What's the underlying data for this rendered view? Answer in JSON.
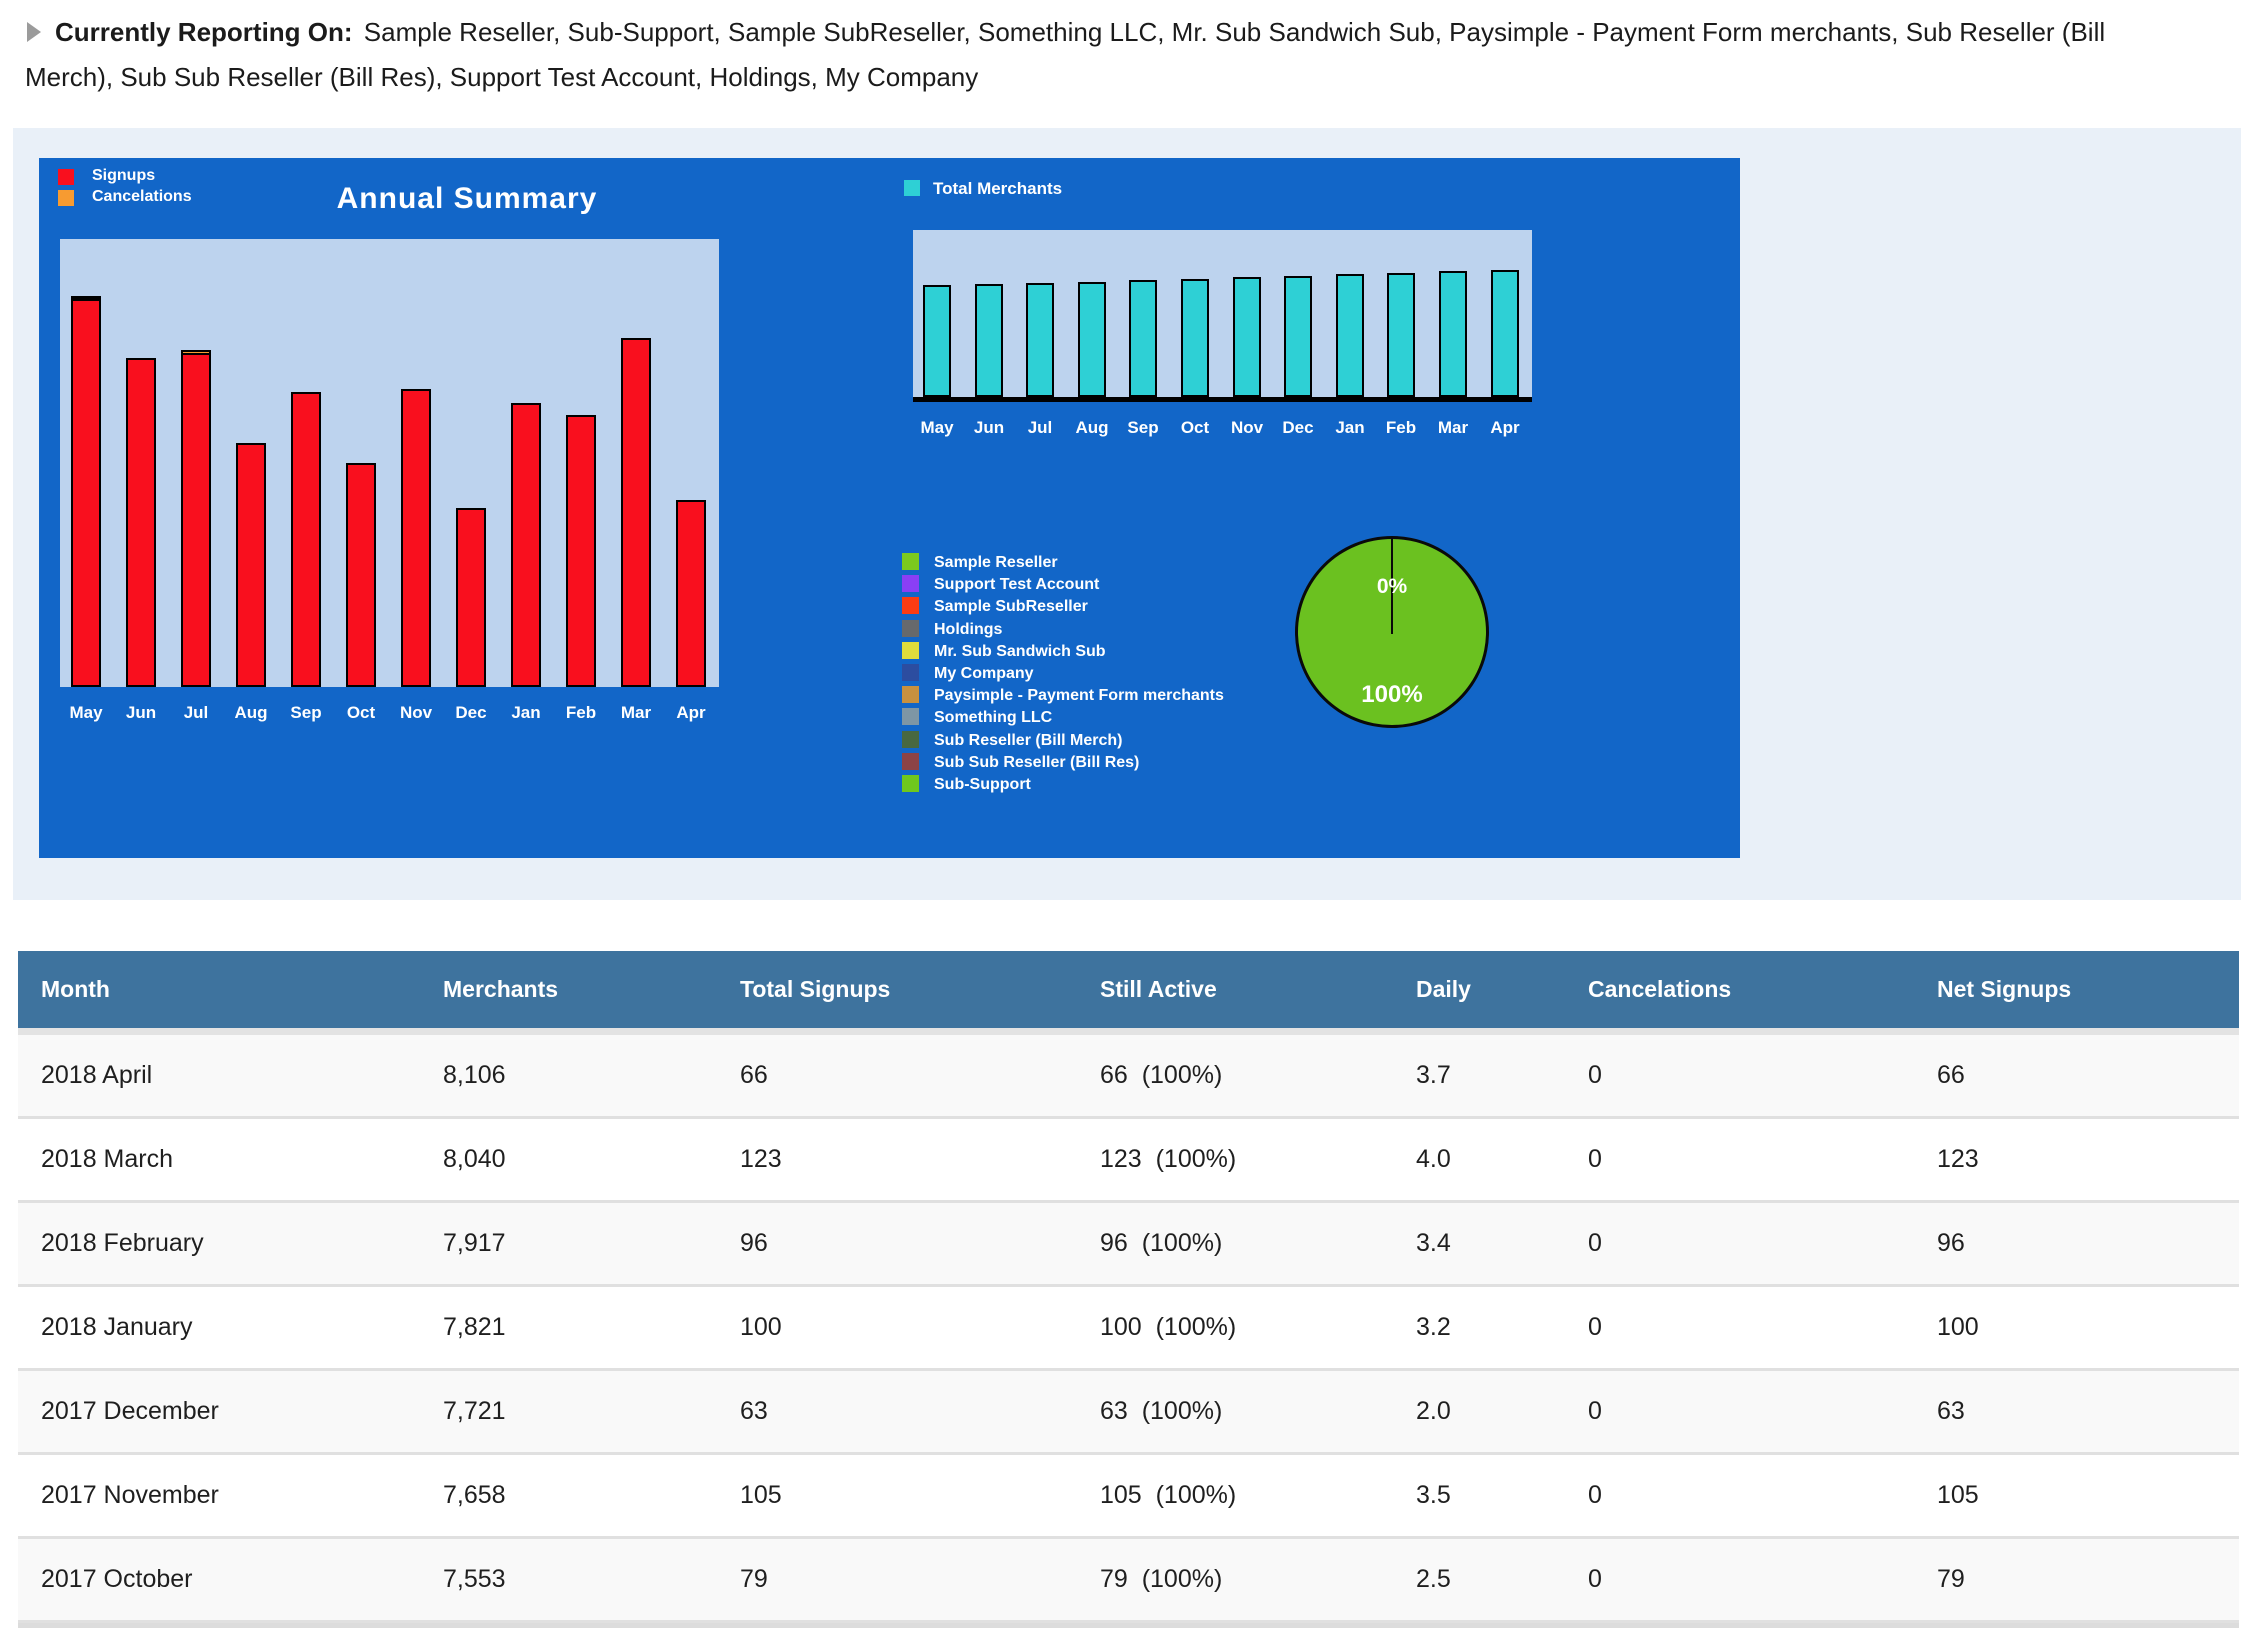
{
  "header": {
    "label": "Currently Reporting On:",
    "entities": "Sample Reseller, Sub-Support, Sample SubReseller, Something LLC, Mr. Sub Sandwich Sub, Paysimple - Payment Form merchants, Sub Reseller (Bill Merch), Sub Sub Reseller (Bill Res), Support Test Account, Holdings, My Company"
  },
  "annual_summary": {
    "title": "Annual Summary",
    "legend": [
      {
        "label": "Signups",
        "color": "#f90f1e"
      },
      {
        "label": "Cancelations",
        "color": "#f79b31"
      }
    ]
  },
  "total_merchants": {
    "legend_label": "Total Merchants",
    "color": "#2ed0d5"
  },
  "reseller_legend": [
    {
      "label": "Sample Reseller",
      "color": "#7cc91e"
    },
    {
      "label": "Support Test Account",
      "color": "#8a3ff5"
    },
    {
      "label": "Sample SubReseller",
      "color": "#fb3c13"
    },
    {
      "label": "Holdings",
      "color": "#67696c"
    },
    {
      "label": "Mr. Sub Sandwich Sub",
      "color": "#dfdc3c"
    },
    {
      "label": "My Company",
      "color": "#2c4da0"
    },
    {
      "label": "Paysimple - Payment Form merchants",
      "color": "#c8913f"
    },
    {
      "label": "Something LLC",
      "color": "#7e96a5"
    },
    {
      "label": "Sub Reseller (Bill Merch)",
      "color": "#486840"
    },
    {
      "label": "Sub Sub Reseller (Bill Res)",
      "color": "#8c4346"
    },
    {
      "label": "Sub-Support",
      "color": "#6fc71d"
    }
  ],
  "pie": {
    "top_label": "0%",
    "bottom_label": "100%",
    "color": "#6bc120"
  },
  "chart_data": [
    {
      "type": "bar",
      "title": "Annual Summary",
      "categories": [
        "May",
        "Jun",
        "Jul",
        "Aug",
        "Sep",
        "Oct",
        "Nov",
        "Dec",
        "Jan",
        "Feb",
        "Mar",
        "Apr"
      ],
      "series": [
        {
          "name": "Signups",
          "color": "#f90f1e",
          "values": [
            138,
            116,
            119,
            86,
            104,
            79,
            105,
            63,
            100,
            96,
            123,
            66
          ]
        },
        {
          "name": "Cancelations",
          "color": "#f79b31",
          "values": [
            0,
            0,
            1,
            0,
            0,
            0,
            0,
            0,
            0,
            0,
            0,
            0
          ]
        }
      ],
      "ylim": [
        0,
        158
      ],
      "grid": false,
      "legend_position": "top-left"
    },
    {
      "type": "bar",
      "title": "Total Merchants",
      "categories": [
        "May",
        "Jun",
        "Jul",
        "Aug",
        "Sep",
        "Oct",
        "Nov",
        "Dec",
        "Jan",
        "Feb",
        "Mar",
        "Apr"
      ],
      "series": [
        {
          "name": "Total Merchants",
          "color": "#2ed0d5",
          "values": [
            7150,
            7220,
            7290,
            7360,
            7450,
            7553,
            7658,
            7721,
            7821,
            7917,
            8040,
            8106
          ]
        }
      ],
      "ylim": [
        0,
        8600
      ],
      "grid": false,
      "legend_position": "top"
    },
    {
      "type": "pie",
      "labels": [
        "0%",
        "100%"
      ],
      "values": [
        0,
        100
      ],
      "colors": [
        "#6bc120",
        "#6bc120"
      ]
    }
  ],
  "table": {
    "columns": [
      "Month",
      "Merchants",
      "Total Signups",
      "Still Active",
      "Daily",
      "Cancelations",
      "Net Signups"
    ],
    "rows": [
      [
        "2018 April",
        "8,106",
        "66",
        "66  (100%)",
        "3.7",
        "0",
        "66"
      ],
      [
        "2018 March",
        "8,040",
        "123",
        "123  (100%)",
        "4.0",
        "0",
        "123"
      ],
      [
        "2018 February",
        "7,917",
        "96",
        "96  (100%)",
        "3.4",
        "0",
        "96"
      ],
      [
        "2018 January",
        "7,821",
        "100",
        "100  (100%)",
        "3.2",
        "0",
        "100"
      ],
      [
        "2017 December",
        "7,721",
        "63",
        "63  (100%)",
        "2.0",
        "0",
        "63"
      ],
      [
        "2017 November",
        "7,658",
        "105",
        "105  (100%)",
        "3.5",
        "0",
        "105"
      ],
      [
        "2017 October",
        "7,553",
        "79",
        "79  (100%)",
        "2.5",
        "0",
        "79"
      ]
    ]
  }
}
